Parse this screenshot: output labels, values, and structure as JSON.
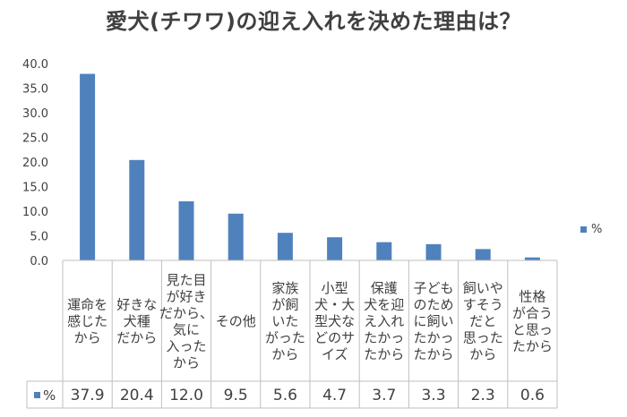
{
  "chart_data": {
    "type": "bar",
    "title": "愛犬(チワワ)の迎え入れを決めた理由は？",
    "categories": [
      "運命を感じたから",
      "好きな犬種だから",
      "見た目が好きだから、気に入ったから",
      "その他",
      "家族が飼いたがったから",
      "小型犬・大型犬などのサイズ",
      "保護犬を迎え入れたかったから",
      "子どものために飼いたかったから",
      "飼いやすそうだと思ったから",
      "性格が合うと思ったから"
    ],
    "category_lines": [
      [
        "運命を",
        "感じた",
        "から"
      ],
      [
        "好きな",
        "犬種",
        "だから"
      ],
      [
        "見た目",
        "が好き",
        "だから、",
        "気に",
        "入った",
        "から"
      ],
      [
        "その他"
      ],
      [
        "家族",
        "が飼",
        "いた",
        "がった",
        "から"
      ],
      [
        "小型",
        "犬・大",
        "型犬な",
        "どのサ",
        "イズ"
      ],
      [
        "保護",
        "犬を迎",
        "え入れ",
        "たかっ",
        "たから"
      ],
      [
        "子ども",
        "のため",
        "に飼い",
        "たかっ",
        "たから"
      ],
      [
        "飼いや",
        "すそう",
        "だと",
        "思った",
        "から"
      ],
      [
        "性格",
        "が合う",
        "と思っ",
        "たから"
      ]
    ],
    "series": [
      {
        "name": "%",
        "values": [
          37.9,
          20.4,
          12.0,
          9.5,
          5.6,
          4.7,
          3.7,
          3.3,
          2.3,
          0.6
        ]
      }
    ],
    "value_labels": [
      "37.9",
      "20.4",
      "12.0",
      "9.5",
      "5.6",
      "4.7",
      "3.7",
      "3.3",
      "2.3",
      "0.6"
    ],
    "y_ticks": [
      "0.0",
      "5.0",
      "10.0",
      "15.0",
      "20.0",
      "25.0",
      "30.0",
      "35.0",
      "40.0"
    ],
    "ylim": [
      0,
      40
    ],
    "data_table": true,
    "legend_position": "right",
    "bar_color": "#4f81bd",
    "grid": false
  }
}
